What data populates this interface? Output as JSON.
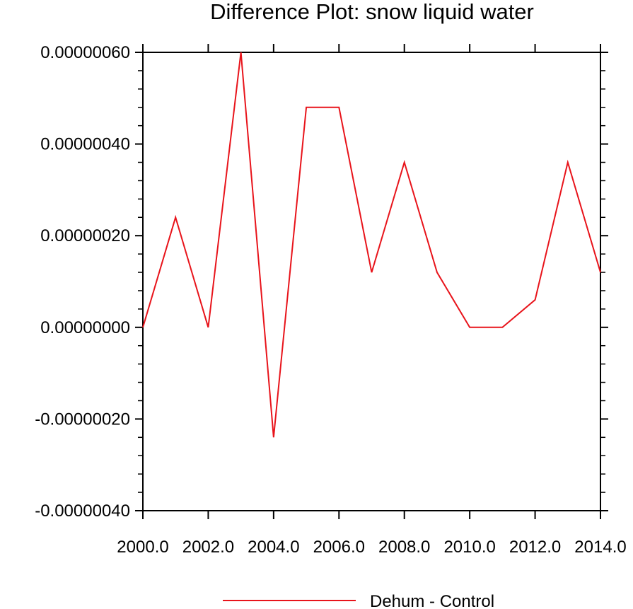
{
  "chart_data": {
    "type": "line",
    "title": "Difference Plot: snow liquid water",
    "xlabel": "",
    "ylabel": "",
    "xlim": [
      2000,
      2014
    ],
    "ylim": [
      -4e-07,
      6e-07
    ],
    "x_ticks": [
      2000,
      2002,
      2004,
      2006,
      2008,
      2010,
      2012,
      2014
    ],
    "x_tick_labels": [
      "2000.0",
      "2002.0",
      "2004.0",
      "2006.0",
      "2008.0",
      "2010.0",
      "2012.0",
      "2014.0"
    ],
    "y_ticks": [
      -4e-07,
      -2e-07,
      0,
      2e-07,
      4e-07,
      6e-07
    ],
    "y_tick_labels": [
      "-0.00000040",
      "-0.00000020",
      "0.00000000",
      "0.00000020",
      "0.00000040",
      "0.00000060"
    ],
    "grid": false,
    "legend_position": "bottom-center",
    "series": [
      {
        "name": "Dehum - Control",
        "color": "#e8141b",
        "x": [
          2000,
          2001,
          2002,
          2003,
          2004,
          2005,
          2006,
          2007,
          2008,
          2009,
          2010,
          2011,
          2012,
          2013,
          2014
        ],
        "y": [
          0,
          2.4e-07,
          0,
          6e-07,
          -2.4e-07,
          4.8e-07,
          4.8e-07,
          1.2e-07,
          3.6e-07,
          1.2e-07,
          0,
          0,
          6e-08,
          3.6e-07,
          1.2e-07
        ]
      }
    ]
  }
}
